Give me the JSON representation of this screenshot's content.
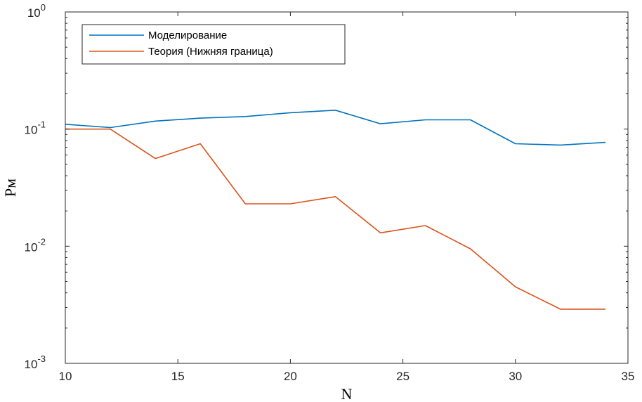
{
  "chart_data": {
    "type": "line",
    "xlabel": "N",
    "ylabel": "Pм",
    "xlim": [
      10,
      35
    ],
    "ylim": [
      0.001,
      1
    ],
    "yscale": "log",
    "grid": false,
    "legend_position": "top-left",
    "x_ticks": [
      "10",
      "15",
      "20",
      "25",
      "30",
      "35"
    ],
    "y_ticks": [
      {
        "base": "10",
        "exp": "-3"
      },
      {
        "base": "10",
        "exp": "-2"
      },
      {
        "base": "10",
        "exp": "-1"
      },
      {
        "base": "10",
        "exp": "0"
      }
    ],
    "x": [
      10,
      12,
      14,
      16,
      18,
      20,
      22,
      24,
      26,
      28,
      30,
      32,
      34
    ],
    "series": [
      {
        "name": "Моделирование",
        "color": "#0072BD",
        "values": [
          0.11,
          0.103,
          0.117,
          0.124,
          0.128,
          0.138,
          0.145,
          0.111,
          0.12,
          0.12,
          0.075,
          0.073,
          0.077
        ]
      },
      {
        "name": "Теория (Нижняя граница)",
        "color": "#D95319",
        "values": [
          0.1,
          0.1,
          0.056,
          0.075,
          0.023,
          0.023,
          0.0265,
          0.013,
          0.015,
          0.0095,
          0.0045,
          0.0029,
          0.0029
        ]
      }
    ]
  }
}
